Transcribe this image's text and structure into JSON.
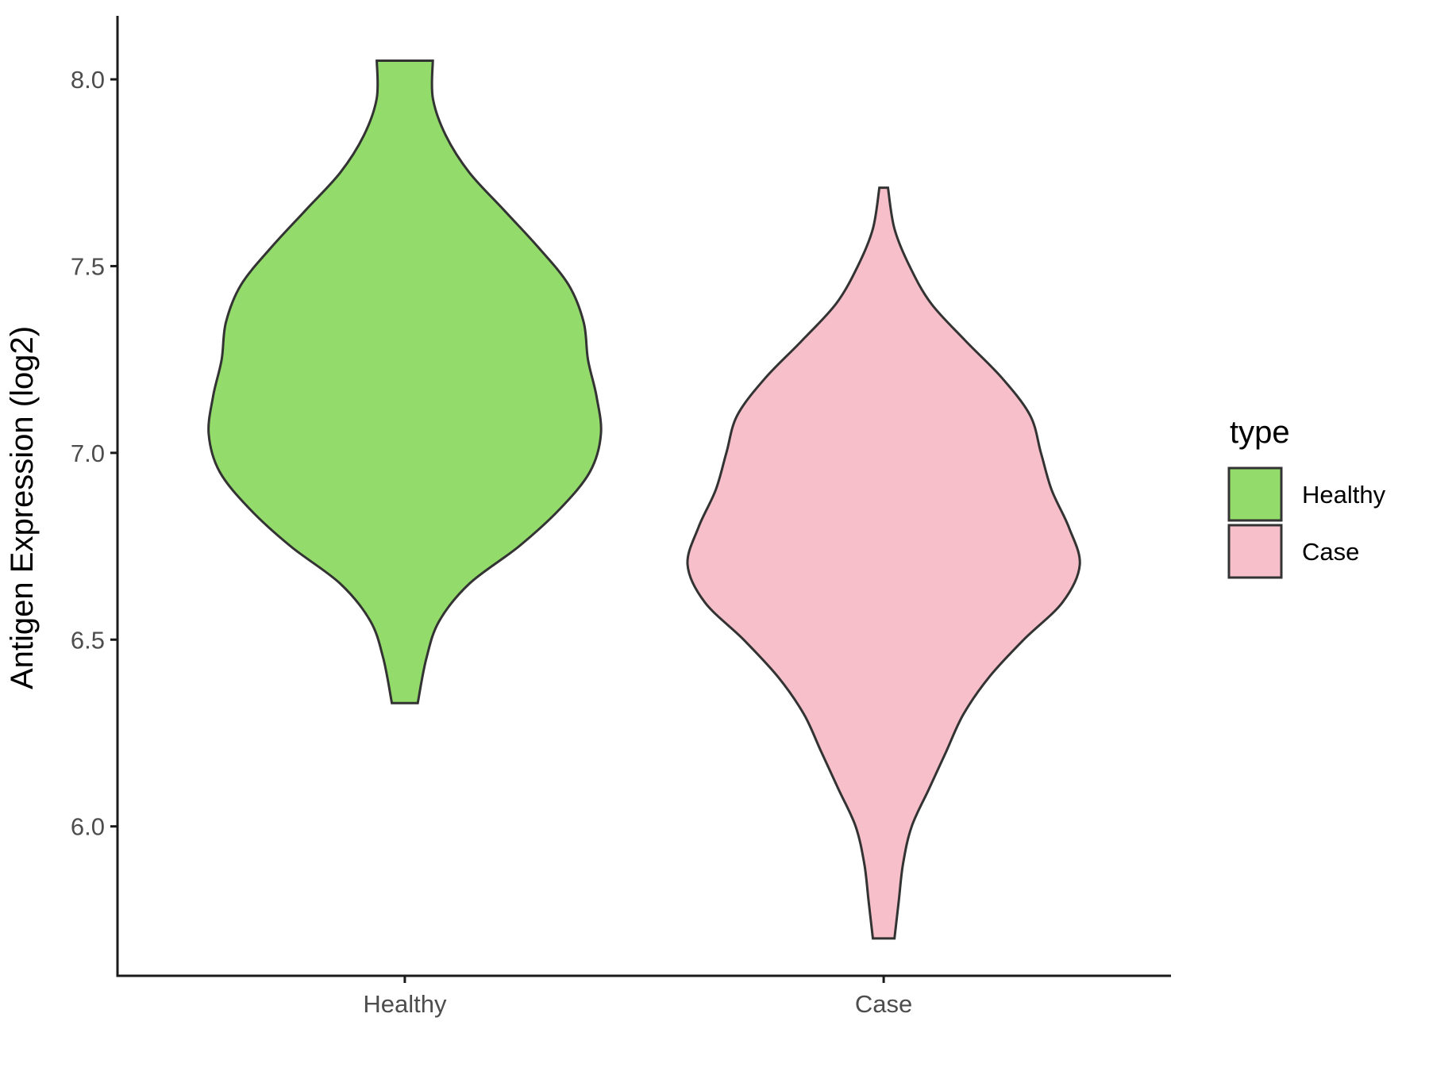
{
  "chart_data": {
    "type": "violin",
    "title": "",
    "xlabel": "",
    "ylabel": "Antigen Expression (log2)",
    "ylim": [
      5.6,
      8.17
    ],
    "yticks": [
      "6.0",
      "6.5",
      "7.0",
      "7.5",
      "8.0"
    ],
    "categories": [
      "Healthy",
      "Case"
    ],
    "legend": {
      "title": "type",
      "placement": "right",
      "entries": [
        "Healthy",
        "Case"
      ]
    },
    "grid": false,
    "series": [
      {
        "name": "Healthy",
        "color": "#93dc6b",
        "min": 6.33,
        "max": 8.05,
        "profile": [
          [
            6.33,
            0.06
          ],
          [
            6.45,
            0.1
          ],
          [
            6.55,
            0.16
          ],
          [
            6.65,
            0.3
          ],
          [
            6.75,
            0.53
          ],
          [
            6.85,
            0.72
          ],
          [
            6.95,
            0.86
          ],
          [
            7.05,
            0.91
          ],
          [
            7.15,
            0.89
          ],
          [
            7.25,
            0.85
          ],
          [
            7.35,
            0.83
          ],
          [
            7.45,
            0.76
          ],
          [
            7.55,
            0.62
          ],
          [
            7.65,
            0.46
          ],
          [
            7.75,
            0.3
          ],
          [
            7.85,
            0.19
          ],
          [
            7.95,
            0.13
          ],
          [
            8.05,
            0.13
          ]
        ]
      },
      {
        "name": "Case",
        "color": "#f7bfca",
        "min": 5.7,
        "max": 7.71,
        "profile": [
          [
            5.7,
            0.05
          ],
          [
            5.8,
            0.07
          ],
          [
            5.9,
            0.09
          ],
          [
            6.0,
            0.13
          ],
          [
            6.1,
            0.21
          ],
          [
            6.2,
            0.29
          ],
          [
            6.3,
            0.37
          ],
          [
            6.4,
            0.49
          ],
          [
            6.5,
            0.65
          ],
          [
            6.6,
            0.83
          ],
          [
            6.7,
            0.91
          ],
          [
            6.8,
            0.86
          ],
          [
            6.9,
            0.78
          ],
          [
            7.0,
            0.73
          ],
          [
            7.1,
            0.68
          ],
          [
            7.2,
            0.55
          ],
          [
            7.3,
            0.38
          ],
          [
            7.4,
            0.22
          ],
          [
            7.5,
            0.12
          ],
          [
            7.6,
            0.05
          ],
          [
            7.71,
            0.02
          ]
        ]
      }
    ]
  }
}
